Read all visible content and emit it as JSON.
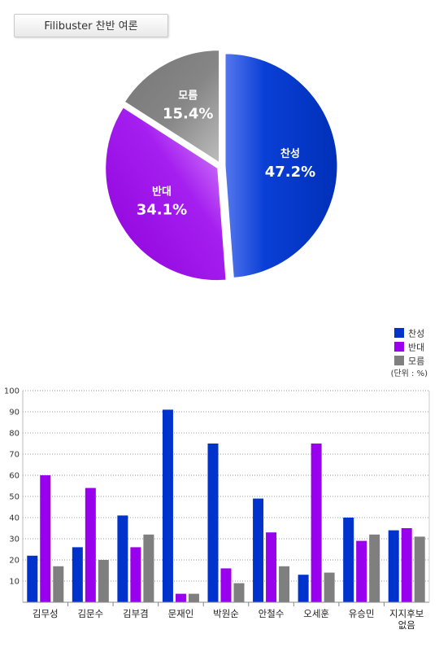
{
  "title": "Filibuster 찬반 여론",
  "chart_data": [
    {
      "type": "pie",
      "slices": [
        {
          "name": "찬성",
          "value": 47.2,
          "label": "47.2%",
          "color": "#0a3fd6"
        },
        {
          "name": "반대",
          "value": 34.1,
          "label": "34.1%",
          "color": "#9b00e6"
        },
        {
          "name": "모름",
          "value": 15.4,
          "label": "15.4%",
          "color": "#808080"
        }
      ]
    },
    {
      "type": "bar",
      "categories": [
        "김무성",
        "김문수",
        "김부겸",
        "문재인",
        "박원순",
        "안철수",
        "오세훈",
        "유승민",
        "지지후보 없음"
      ],
      "series": [
        {
          "name": "찬성",
          "color": "#0033cc",
          "values": [
            22,
            26,
            41,
            91,
            75,
            49,
            13,
            40,
            34
          ]
        },
        {
          "name": "반대",
          "color": "#9900ee",
          "values": [
            60,
            54,
            26,
            4,
            16,
            33,
            75,
            29,
            35
          ]
        },
        {
          "name": "모름",
          "color": "#7f7f7f",
          "values": [
            17,
            20,
            32,
            4,
            9,
            17,
            14,
            32,
            31
          ]
        }
      ],
      "ylim": [
        0,
        100
      ],
      "yticks": [
        10,
        20,
        30,
        40,
        50,
        60,
        70,
        80,
        90,
        100
      ],
      "unit_note": "(단위 : %)",
      "legend_position": "top-right",
      "grid": true
    }
  ]
}
